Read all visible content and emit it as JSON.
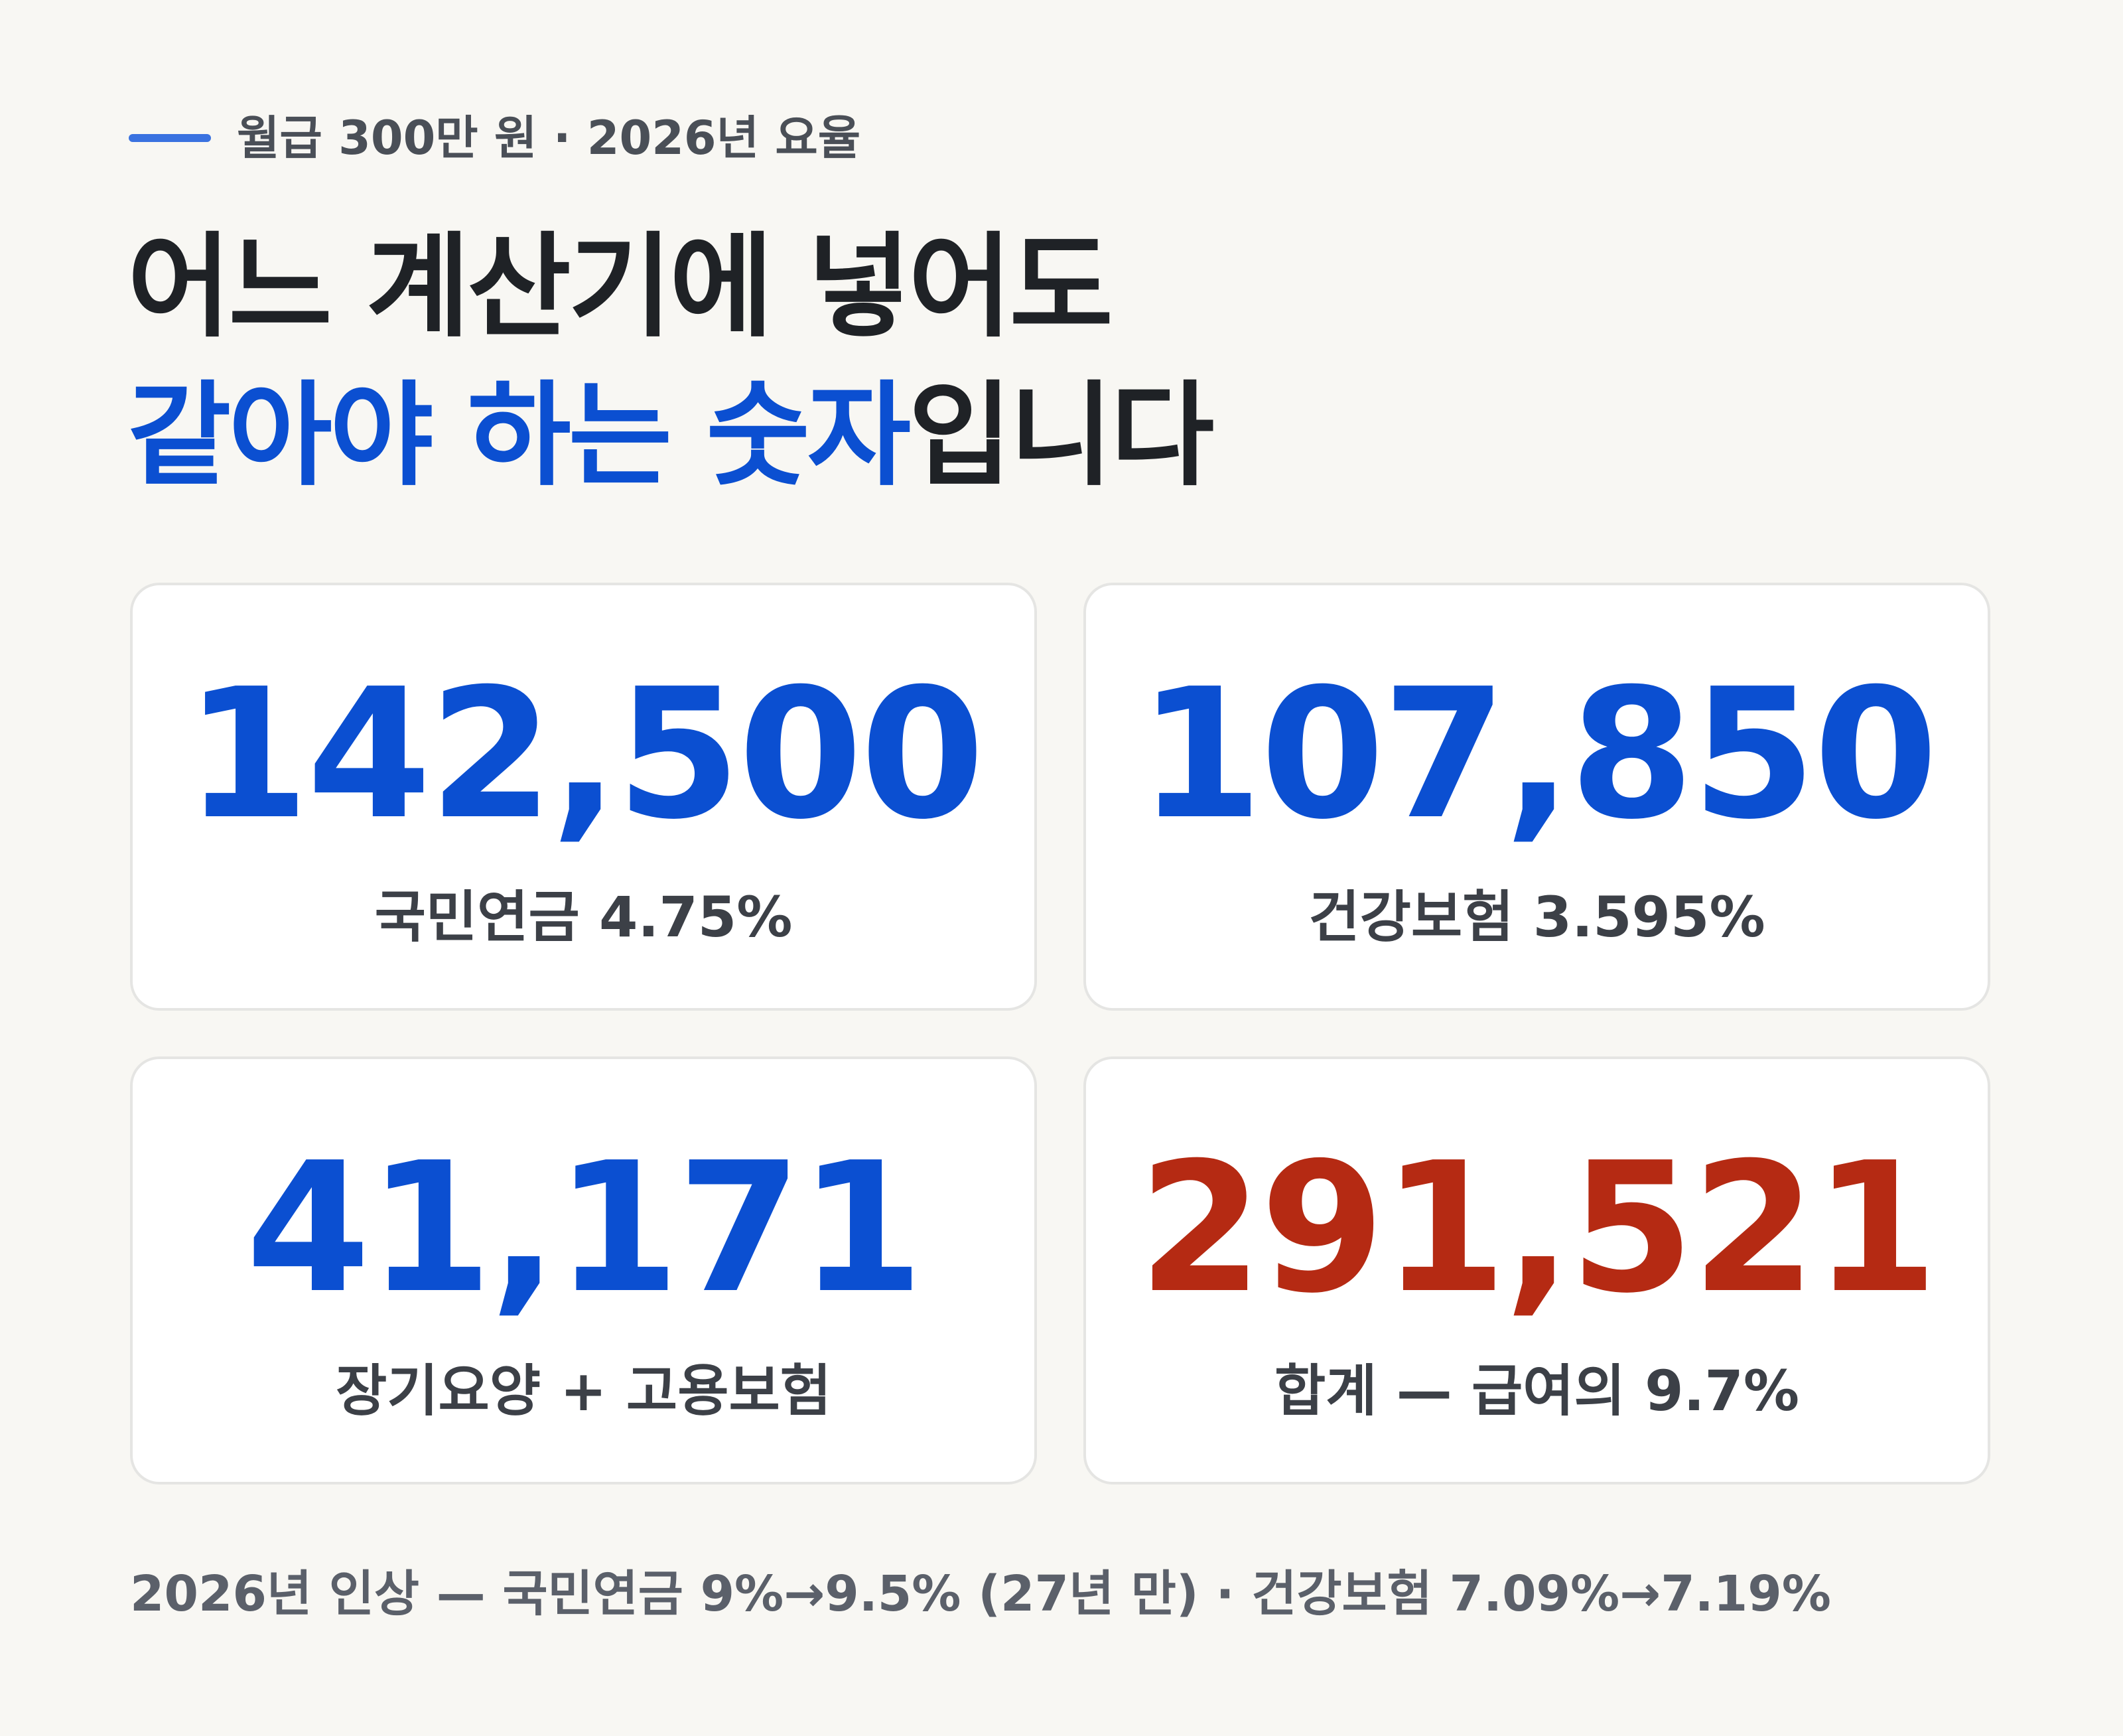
{
  "header": {
    "eyebrow": "월급 300만 원 · 2026년 요율",
    "title_line1": "어느 계산기에 넣어도",
    "title_line2_highlight": "같아야 하는 숫자",
    "title_line2_rest": "입니다"
  },
  "cards": [
    {
      "value": "142,500",
      "label": "국민연금 4.75%"
    },
    {
      "value": "107,850",
      "label": "건강보험 3.595%"
    },
    {
      "value": "41,171",
      "label": "장기요양 + 고용보험"
    },
    {
      "value": "291,521",
      "label": "합계 — 급여의 9.7%"
    }
  ],
  "footnote": "2026년 인상 — 국민연금 9%→9.5% (27년 만) · 건강보험 7.09%→7.19%"
}
